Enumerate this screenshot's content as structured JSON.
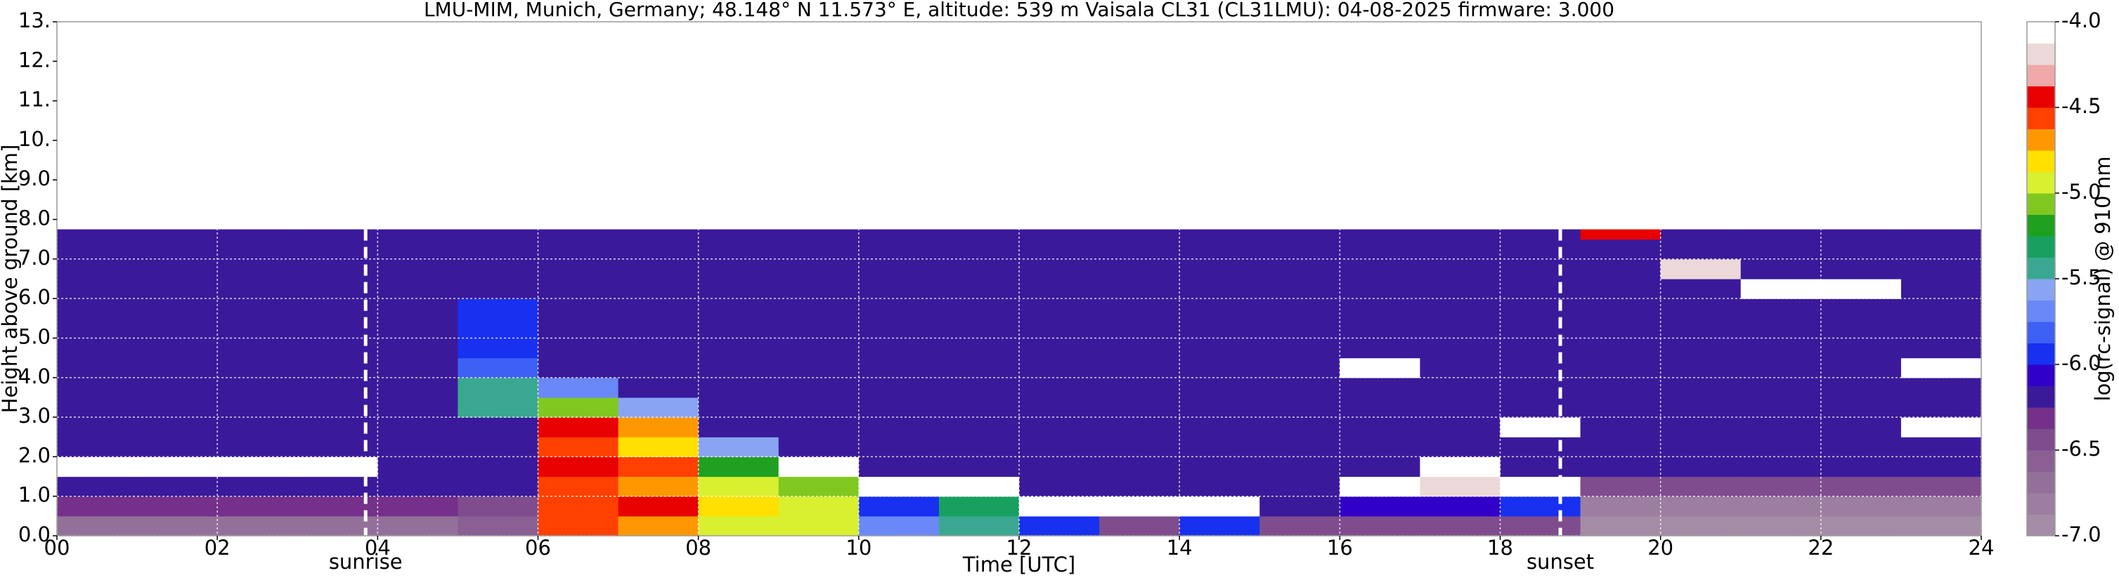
{
  "chart_data": {
    "type": "heatmap",
    "title": "LMU-MIM, Munich, Germany; 48.148° N 11.573° E, altitude: 539 m    Vaisala CL31 (CL31LMU): 04-08-2025    firmware: 3.000",
    "x_label": "Time [UTC]",
    "y_label": "Height above ground [km]",
    "xlim": [
      0,
      24
    ],
    "ylim": [
      0,
      13
    ],
    "xticks": [
      {
        "value": 0,
        "label": "00"
      },
      {
        "value": 2,
        "label": "02"
      },
      {
        "value": 4,
        "label": "04"
      },
      {
        "value": 6,
        "label": "06"
      },
      {
        "value": 8,
        "label": "08"
      },
      {
        "value": 10,
        "label": "10"
      },
      {
        "value": 12,
        "label": "12"
      },
      {
        "value": 14,
        "label": "14"
      },
      {
        "value": 16,
        "label": "16"
      },
      {
        "value": 18,
        "label": "18"
      },
      {
        "value": 20,
        "label": "20"
      },
      {
        "value": 22,
        "label": "22"
      },
      {
        "value": 24,
        "label": "24"
      }
    ],
    "yticks": [
      {
        "value": 0,
        "label": "0.0"
      },
      {
        "value": 1,
        "label": "1.0"
      },
      {
        "value": 2,
        "label": "2.0"
      },
      {
        "value": 3,
        "label": "3.0"
      },
      {
        "value": 4,
        "label": "4.0"
      },
      {
        "value": 5,
        "label": "5.0"
      },
      {
        "value": 6,
        "label": "6.0"
      },
      {
        "value": 7,
        "label": "7.0"
      },
      {
        "value": 8,
        "label": "8.0"
      },
      {
        "value": 9,
        "label": "9.0"
      },
      {
        "value": 10,
        "label": "10."
      },
      {
        "value": 11,
        "label": "11."
      },
      {
        "value": 12,
        "label": "12."
      },
      {
        "value": 13,
        "label": "13."
      }
    ],
    "grid": true,
    "x_bins": [
      0,
      1,
      2,
      3,
      4,
      5,
      6,
      7,
      8,
      9,
      10,
      11,
      12,
      13,
      14,
      15,
      16,
      17,
      18,
      19,
      20,
      21,
      22,
      23,
      24
    ],
    "y_bins": [
      0,
      0.5,
      1,
      1.5,
      2,
      2.5,
      3,
      3.5,
      4,
      4.5,
      5,
      5.5,
      6,
      6.5,
      7,
      7.5,
      7.75
    ],
    "z": [
      [
        -6.7,
        -6.7,
        -6.7,
        -6.7,
        -6.7,
        -6.6,
        -4.6,
        -4.7,
        -4.9,
        -5.0,
        -5.7,
        -5.4,
        -6.0,
        -6.4,
        -6.0,
        -6.5,
        -6.5,
        -6.5,
        -6.5,
        -6.9,
        -6.9,
        -6.9,
        -6.9,
        -6.9
      ],
      [
        -6.3,
        -6.3,
        -6.3,
        -6.3,
        -6.3,
        -6.4,
        -4.6,
        -4.5,
        -4.8,
        -5.0,
        -5.9,
        -5.3,
        -4.1,
        -4.1,
        -4.1,
        -6.2,
        -6.1,
        -6.1,
        -6.0,
        -6.8,
        -6.8,
        -6.8,
        -6.8,
        -6.8
      ],
      [
        -6.2,
        -6.2,
        -6.2,
        -6.2,
        -6.2,
        -6.2,
        -4.6,
        -4.7,
        -4.9,
        -5.1,
        -4.1,
        -4.1,
        -6.2,
        -6.2,
        -6.2,
        -6.2,
        -4.1,
        -4.2,
        -4.1,
        -6.4,
        -6.4,
        -6.4,
        -6.4,
        -6.4
      ],
      [
        -4.1,
        -4.1,
        -4.1,
        -4.1,
        -6.2,
        -6.2,
        -4.5,
        -4.6,
        -5.2,
        -4.1,
        -6.2,
        -6.2,
        -6.2,
        -6.2,
        -6.2,
        -6.2,
        -6.2,
        -4.1,
        -6.2,
        -6.2,
        -6.2,
        -6.2,
        -6.2,
        -6.2
      ],
      [
        -6.2,
        -6.2,
        -6.2,
        -6.2,
        -6.2,
        -6.2,
        -4.6,
        -4.8,
        -5.6,
        -6.2,
        -6.2,
        -6.2,
        -6.2,
        -6.2,
        -6.2,
        -6.2,
        -6.2,
        -6.2,
        -6.2,
        -6.2,
        -6.2,
        -6.2,
        -6.2,
        -6.2
      ],
      [
        -6.2,
        -6.2,
        -6.2,
        -6.2,
        -6.2,
        -6.2,
        -4.5,
        -4.7,
        -6.2,
        -6.2,
        -6.2,
        -6.2,
        -6.2,
        -6.2,
        -6.2,
        -6.2,
        -6.2,
        -6.2,
        -4.1,
        -6.2,
        -6.2,
        -6.2,
        -6.2,
        -4.1
      ],
      [
        -6.2,
        -6.2,
        -6.2,
        -6.2,
        -6.2,
        -5.4,
        -5.1,
        -5.6,
        -6.2,
        -6.2,
        -6.2,
        -6.2,
        -6.2,
        -6.2,
        -6.2,
        -6.2,
        -6.2,
        -6.2,
        -6.2,
        -6.2,
        -6.2,
        -6.2,
        -6.2,
        -6.2
      ],
      [
        -6.2,
        -6.2,
        -6.2,
        -6.2,
        -6.2,
        -5.5,
        -5.7,
        -6.2,
        -6.2,
        -6.2,
        -6.2,
        -6.2,
        -6.2,
        -6.2,
        -6.2,
        -6.2,
        -6.2,
        -6.2,
        -6.2,
        -6.2,
        -6.2,
        -6.2,
        -6.2,
        -6.2
      ],
      [
        -6.2,
        -6.2,
        -6.2,
        -6.2,
        -6.2,
        -5.8,
        -6.2,
        -6.2,
        -6.2,
        -6.2,
        -6.2,
        -6.2,
        -6.2,
        -6.2,
        -6.2,
        -6.2,
        -4.1,
        -6.2,
        -6.2,
        -6.2,
        -6.2,
        -6.2,
        -6.2,
        -4.1
      ],
      [
        -6.2,
        -6.2,
        -6.2,
        -6.2,
        -6.2,
        -6.0,
        -6.2,
        -6.2,
        -6.2,
        -6.2,
        -6.2,
        -6.2,
        -6.2,
        -6.2,
        -6.2,
        -6.2,
        -6.2,
        -6.2,
        -6.2,
        -6.2,
        -6.2,
        -6.2,
        -6.2,
        -6.2
      ],
      [
        -6.2,
        -6.2,
        -6.2,
        -6.2,
        -6.2,
        -6.0,
        -6.2,
        -6.2,
        -6.2,
        -6.2,
        -6.2,
        -6.2,
        -6.2,
        -6.2,
        -6.2,
        -6.2,
        -6.2,
        -6.2,
        -6.2,
        -6.2,
        -6.2,
        -6.2,
        -6.2,
        -6.2
      ],
      [
        -6.2,
        -6.2,
        -6.2,
        -6.2,
        -6.2,
        -6.0,
        -6.2,
        -6.2,
        -6.2,
        -6.2,
        -6.2,
        -6.2,
        -6.2,
        -6.2,
        -6.2,
        -6.2,
        -6.2,
        -6.2,
        -6.2,
        -6.2,
        -6.2,
        -6.2,
        -6.2,
        -6.2
      ],
      [
        -6.2,
        -6.2,
        -6.2,
        -6.2,
        -6.2,
        -6.2,
        -6.2,
        -6.2,
        -6.2,
        -6.2,
        -6.2,
        -6.2,
        -6.2,
        -6.2,
        -6.2,
        -6.2,
        -6.2,
        -6.2,
        -6.2,
        -6.2,
        -6.2,
        -4.1,
        -4.1,
        -6.2
      ],
      [
        -6.2,
        -6.2,
        -6.2,
        -6.2,
        -6.2,
        -6.2,
        -6.2,
        -6.2,
        -6.2,
        -6.2,
        -6.2,
        -6.2,
        -6.2,
        -6.2,
        -6.2,
        -6.2,
        -6.2,
        -6.2,
        -6.2,
        -6.2,
        -4.2,
        -6.2,
        -6.2,
        -6.2
      ],
      [
        -6.2,
        -6.2,
        -6.2,
        -6.2,
        -6.2,
        -6.2,
        -6.2,
        -6.2,
        -6.2,
        -6.2,
        -6.2,
        -6.2,
        -6.2,
        -6.2,
        -6.2,
        -6.2,
        -6.2,
        -6.2,
        -6.2,
        -6.2,
        -6.2,
        -6.2,
        -6.2,
        -6.2
      ],
      [
        -6.2,
        -6.2,
        -6.2,
        -6.2,
        -6.2,
        -6.2,
        -6.2,
        -6.2,
        -6.2,
        -6.2,
        -6.2,
        -6.2,
        -6.2,
        -6.2,
        -6.2,
        -6.2,
        -6.2,
        -6.2,
        -6.2,
        -4.5,
        -6.2,
        -6.2,
        -6.2,
        -6.2
      ]
    ],
    "annotations": [
      {
        "x": 3.85,
        "label": "sunrise"
      },
      {
        "x": 18.75,
        "label": "sunset"
      }
    ],
    "colorbar": {
      "label": "log(rc-signal) @ 910 nm",
      "lim": [
        -7,
        -4
      ],
      "ticks": [
        {
          "value": -7,
          "label": "-7.0"
        },
        {
          "value": -6.5,
          "label": "-6.5"
        },
        {
          "value": -6,
          "label": "-6.0"
        },
        {
          "value": -5.5,
          "label": "-5.5"
        },
        {
          "value": -5,
          "label": "-5.0"
        },
        {
          "value": -4.5,
          "label": "-4.5"
        },
        {
          "value": -4,
          "label": "-4.0"
        }
      ],
      "colors": [
        "#a48ca6",
        "#9c7ea0",
        "#93709a",
        "#8a6094",
        "#7f4c8e",
        "#74308a",
        "#3a1a9a",
        "#3000c8",
        "#1830f0",
        "#3f60f5",
        "#6a88f8",
        "#8aa4f4",
        "#3aa890",
        "#18a060",
        "#20a020",
        "#80c820",
        "#d8f030",
        "#ffe000",
        "#ff9800",
        "#ff4000",
        "#e80000",
        "#f0a8a8",
        "#ecd8d8",
        "#ffffff"
      ]
    }
  }
}
